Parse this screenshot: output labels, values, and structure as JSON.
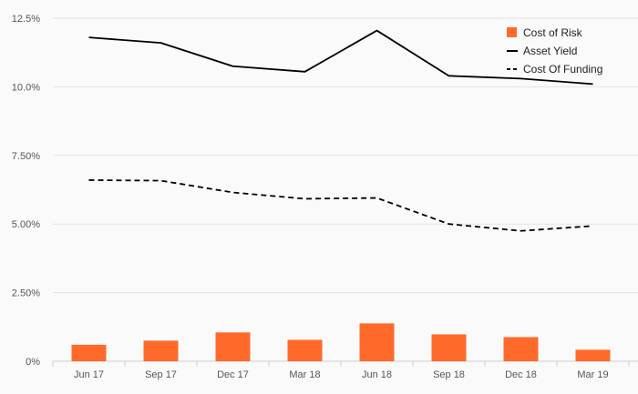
{
  "chart_data": {
    "type": "bar",
    "title": "",
    "xlabel": "",
    "ylabel": "",
    "categories": [
      "Jun 17",
      "Sep 17",
      "Dec 17",
      "Mar 18",
      "Jun 18",
      "Sep 18",
      "Dec 18",
      "Mar 19"
    ],
    "y_ticks": [
      "0%",
      "2.50%",
      "5.00%",
      "7.50%",
      "10.0%",
      "12.5%"
    ],
    "ylim": [
      0,
      12.5
    ],
    "grid": true,
    "legend_position": "top-right",
    "series": [
      {
        "name": "Cost of Risk",
        "type": "bar",
        "color": "#ff6a2b",
        "values": [
          0.6,
          0.75,
          1.05,
          0.78,
          1.38,
          0.98,
          0.88,
          0.42
        ]
      },
      {
        "name": "Asset Yield",
        "type": "line",
        "line_style": "solid",
        "color": "#000000",
        "values": [
          11.8,
          11.6,
          10.75,
          10.55,
          12.05,
          10.4,
          10.3,
          10.1
        ]
      },
      {
        "name": "Cost Of Funding",
        "type": "line",
        "line_style": "dashed",
        "color": "#000000",
        "values": [
          6.6,
          6.58,
          6.15,
          5.92,
          5.95,
          5.0,
          4.75,
          4.93
        ]
      }
    ]
  }
}
